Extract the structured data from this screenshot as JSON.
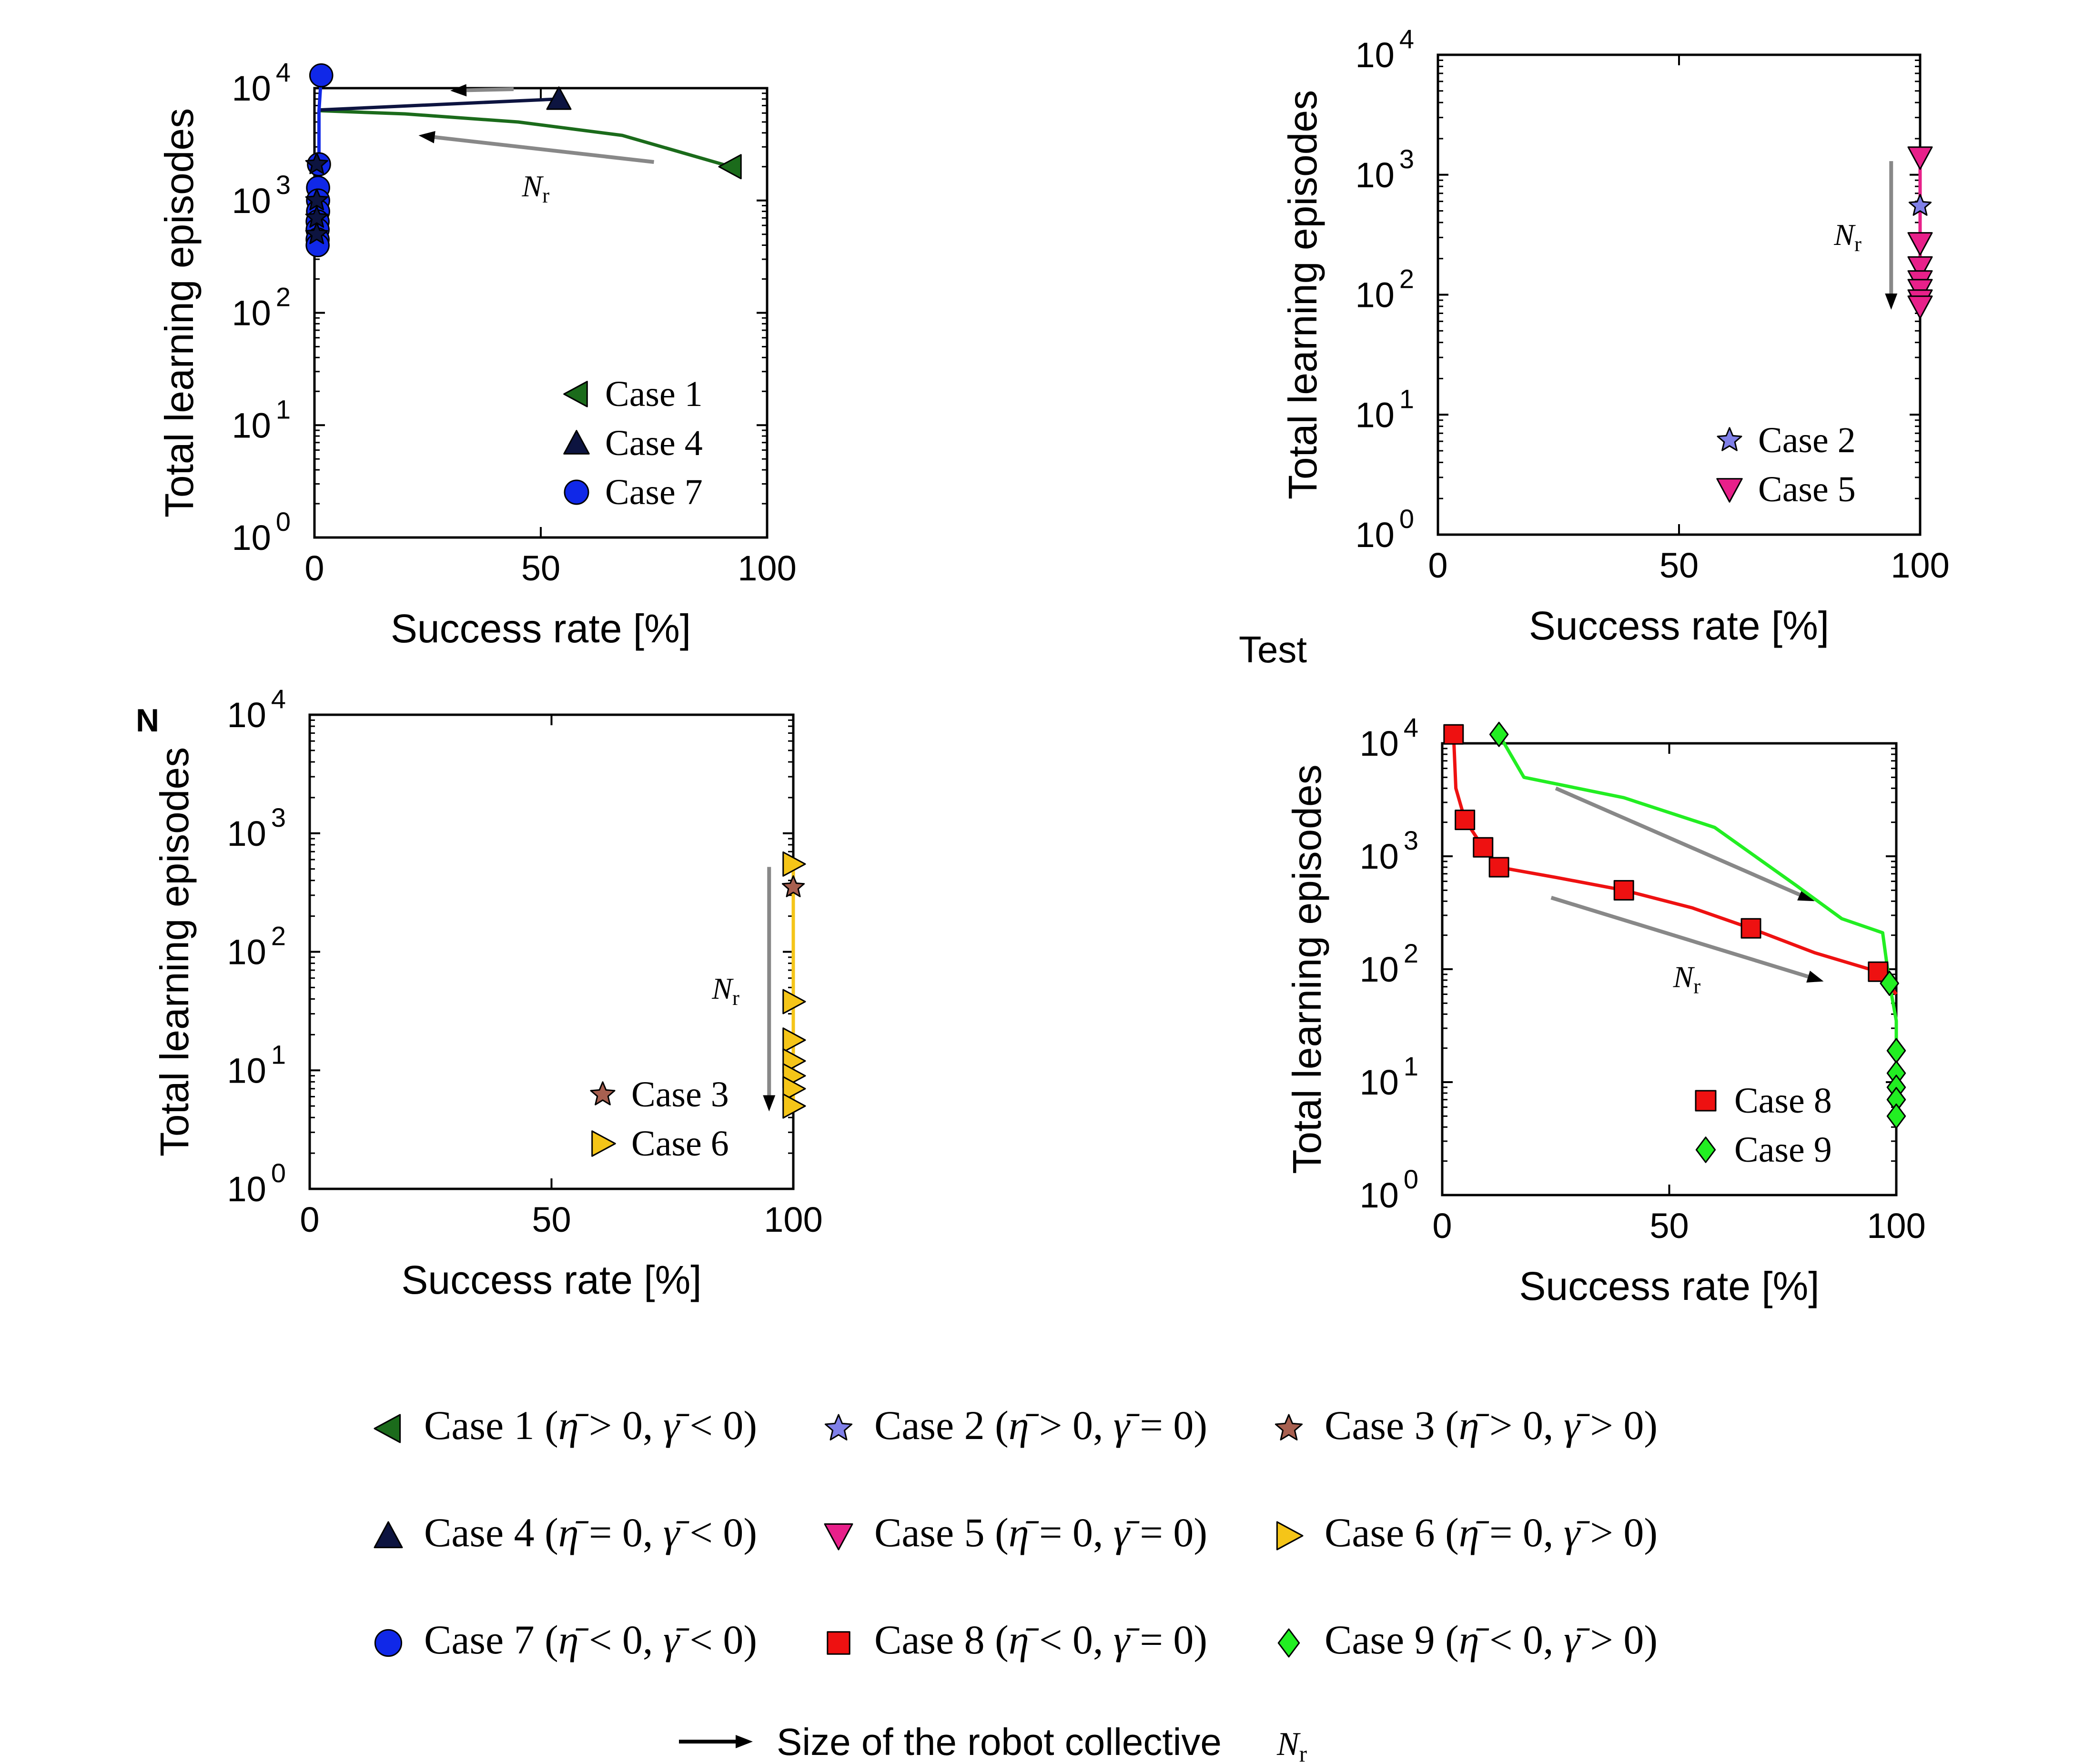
{
  "figure": {
    "stray_labels": [
      {
        "text": "Test"
      },
      {
        "text": "N"
      }
    ]
  },
  "chart_data": [
    {
      "type": "scatter",
      "panel": "top-left",
      "xlabel": "Success rate [%]",
      "ylabel": "Total learning episodes",
      "xlim": [
        0,
        100
      ],
      "ylim": [
        1,
        10000
      ],
      "yscale": "log",
      "xticks": [
        "0",
        "50",
        "100"
      ],
      "yticks": [
        {
          "base": "10",
          "exp": "0"
        },
        {
          "base": "10",
          "exp": "1"
        },
        {
          "base": "10",
          "exp": "2"
        },
        {
          "base": "10",
          "exp": "3"
        },
        {
          "base": "10",
          "exp": "4"
        }
      ],
      "legend": {
        "placement": "bottom-right",
        "entries": [
          "Case 1",
          "Case 4",
          "Case 7"
        ]
      },
      "series": [
        {
          "name": "Case 1",
          "marker": "triangle-left",
          "color": "#1b6b1b",
          "points": [
            [
              92,
              2000
            ]
          ],
          "line": [
            [
              92,
              2000
            ],
            [
              68,
              3800
            ],
            [
              45,
              5000
            ],
            [
              20,
              5900
            ],
            [
              1,
              6300
            ]
          ]
        },
        {
          "name": "Case 4",
          "marker": "triangle-up",
          "color": "#0d1440",
          "points": [
            [
              54,
              8000
            ]
          ],
          "line": [
            [
              54,
              8000
            ],
            [
              1,
              6400
            ]
          ]
        },
        {
          "name": "Case 7",
          "marker": "circle",
          "color": "#1028e8",
          "points": [
            [
              1.5,
              13000
            ],
            [
              1,
              2100
            ],
            [
              0.8,
              1300
            ],
            [
              0.8,
              1000
            ],
            [
              0.8,
              800
            ],
            [
              0.7,
              650
            ],
            [
              0.7,
              550
            ],
            [
              0.7,
              450
            ],
            [
              0.7,
              400
            ]
          ],
          "line": [
            [
              1.5,
              13000
            ],
            [
              1,
              6300
            ],
            [
              1,
              2100
            ],
            [
              0.8,
              1000
            ],
            [
              0.7,
              400
            ]
          ]
        },
        {
          "name": "",
          "marker": "star",
          "color": "#0d1440",
          "points": [
            [
              0.5,
              2100
            ],
            [
              0.5,
              1000
            ],
            [
              0.5,
              700
            ],
            [
              0.5,
              500
            ]
          ]
        }
      ],
      "annotations": [
        {
          "type": "arrow",
          "color": "#888888",
          "label": "",
          "from": [
            44,
            9800
          ],
          "to": [
            30,
            9500
          ]
        },
        {
          "type": "arrow",
          "color": "#888888",
          "label": "N_r",
          "from": [
            75,
            2200
          ],
          "to": [
            23,
            3800
          ]
        }
      ]
    },
    {
      "type": "scatter",
      "panel": "top-right",
      "xlabel": "Success rate [%]",
      "ylabel": "Total learning episodes",
      "xlim": [
        0,
        100
      ],
      "ylim": [
        1,
        10000
      ],
      "yscale": "log",
      "xticks": [
        "0",
        "50",
        "100"
      ],
      "yticks": [
        {
          "base": "10",
          "exp": "0"
        },
        {
          "base": "10",
          "exp": "1"
        },
        {
          "base": "10",
          "exp": "2"
        },
        {
          "base": "10",
          "exp": "3"
        },
        {
          "base": "10",
          "exp": "4"
        }
      ],
      "legend": {
        "placement": "bottom-right",
        "entries": [
          "Case 2",
          "Case 5"
        ]
      },
      "series": [
        {
          "name": "Case 2",
          "marker": "star",
          "color": "#8080e8",
          "points": [
            [
              100,
              550
            ]
          ]
        },
        {
          "name": "Case 5",
          "marker": "triangle-down",
          "color": "#e8208a",
          "points": [
            [
              100,
              1400
            ],
            [
              100,
              270
            ],
            [
              100,
              170
            ],
            [
              100,
              130
            ],
            [
              100,
              110
            ],
            [
              100,
              90
            ],
            [
              100,
              80
            ]
          ],
          "line": [
            [
              100,
              1400
            ],
            [
              100,
              80
            ]
          ]
        }
      ],
      "annotations": [
        {
          "type": "arrow",
          "color": "#888888",
          "label": "N_r",
          "from": [
            94,
            1300
          ],
          "to": [
            94,
            75
          ]
        }
      ]
    },
    {
      "type": "scatter",
      "panel": "bottom-left",
      "xlabel": "Success rate [%]",
      "ylabel": "Total learning episodes",
      "xlim": [
        0,
        100
      ],
      "ylim": [
        1,
        10000
      ],
      "yscale": "log",
      "xticks": [
        "0",
        "50",
        "100"
      ],
      "yticks": [
        {
          "base": "10",
          "exp": "0"
        },
        {
          "base": "10",
          "exp": "1"
        },
        {
          "base": "10",
          "exp": "2"
        },
        {
          "base": "10",
          "exp": "3"
        },
        {
          "base": "10",
          "exp": "4"
        }
      ],
      "legend": {
        "placement": "bottom-right",
        "entries": [
          "Case 3",
          "Case 6"
        ]
      },
      "series": [
        {
          "name": "Case 3",
          "marker": "star",
          "color": "#a86050",
          "points": [
            [
              100,
              350
            ]
          ]
        },
        {
          "name": "Case 6",
          "marker": "triangle-right",
          "color": "#f5c518",
          "points": [
            [
              100,
              550
            ],
            [
              100,
              38
            ],
            [
              100,
              18
            ],
            [
              100,
              12
            ],
            [
              100,
              9
            ],
            [
              100,
              7
            ],
            [
              100,
              5
            ]
          ],
          "line": [
            [
              100,
              550
            ],
            [
              100,
              5
            ]
          ]
        }
      ],
      "annotations": [
        {
          "type": "arrow",
          "color": "#888888",
          "label": "N_r",
          "from": [
            95,
            520
          ],
          "to": [
            95,
            4.5
          ]
        }
      ]
    },
    {
      "type": "scatter",
      "panel": "bottom-right",
      "xlabel": "Success rate [%]",
      "ylabel": "Total learning episodes",
      "xlim": [
        0,
        100
      ],
      "ylim": [
        1,
        10000
      ],
      "yscale": "log",
      "xticks": [
        "0",
        "50",
        "100"
      ],
      "yticks": [
        {
          "base": "10",
          "exp": "0"
        },
        {
          "base": "10",
          "exp": "1"
        },
        {
          "base": "10",
          "exp": "2"
        },
        {
          "base": "10",
          "exp": "3"
        },
        {
          "base": "10",
          "exp": "4"
        }
      ],
      "legend": {
        "placement": "bottom-right",
        "entries": [
          "Case 8",
          "Case 9"
        ]
      },
      "series": [
        {
          "name": "Case 8",
          "marker": "square",
          "color": "#ee1111",
          "points": [
            [
              2.5,
              12000
            ],
            [
              5,
              2100
            ],
            [
              9,
              1200
            ],
            [
              12.5,
              800
            ],
            [
              40,
              500
            ],
            [
              68,
              230
            ],
            [
              96,
              95
            ]
          ],
          "line": [
            [
              2.5,
              12000
            ],
            [
              3,
              4000
            ],
            [
              5,
              2100
            ],
            [
              9,
              1200
            ],
            [
              12.5,
              800
            ],
            [
              25,
              650
            ],
            [
              40,
              500
            ],
            [
              55,
              350
            ],
            [
              68,
              230
            ],
            [
              82,
              140
            ],
            [
              96,
              95
            ],
            [
              100,
              60
            ]
          ]
        },
        {
          "name": "Case 9",
          "marker": "diamond",
          "color": "#22ee22",
          "points": [
            [
              12.5,
              12000
            ],
            [
              98.5,
              75
            ],
            [
              100,
              19
            ],
            [
              100,
              12
            ],
            [
              100,
              9
            ],
            [
              100,
              7
            ],
            [
              100,
              5
            ]
          ],
          "line": [
            [
              12.5,
              12000
            ],
            [
              18,
              5000
            ],
            [
              40,
              3300
            ],
            [
              60,
              1800
            ],
            [
              78,
              550
            ],
            [
              88,
              280
            ],
            [
              97,
              210
            ],
            [
              98.5,
              75
            ],
            [
              100,
              35
            ],
            [
              100,
              5
            ]
          ]
        }
      ],
      "annotations": [
        {
          "type": "arrow",
          "color": "#888888",
          "label": "",
          "from": [
            25,
            4000
          ],
          "to": [
            82,
            400
          ]
        },
        {
          "type": "arrow",
          "color": "#888888",
          "label": "N_r",
          "from": [
            24,
            430
          ],
          "to": [
            84,
            78
          ]
        }
      ]
    }
  ],
  "bottom_legend": {
    "entries": [
      {
        "marker": "triangle-left",
        "color": "#1b6b1b",
        "label": "Case 1",
        "eta": ">",
        "gamma": "<"
      },
      {
        "marker": "star",
        "color": "#8080e8",
        "label": "Case 2",
        "eta": ">",
        "gamma": "="
      },
      {
        "marker": "star",
        "color": "#a86050",
        "label": "Case 3",
        "eta": ">",
        "gamma": ">"
      },
      {
        "marker": "triangle-up",
        "color": "#0d1440",
        "label": "Case 4",
        "eta": "=",
        "gamma": "<"
      },
      {
        "marker": "triangle-down",
        "color": "#e8208a",
        "label": "Case 5",
        "eta": "=",
        "gamma": "="
      },
      {
        "marker": "triangle-right",
        "color": "#f5c518",
        "label": "Case 6",
        "eta": "=",
        "gamma": ">"
      },
      {
        "marker": "circle",
        "color": "#1028e8",
        "label": "Case 7",
        "eta": "<",
        "gamma": "<"
      },
      {
        "marker": "square",
        "color": "#ee1111",
        "label": "Case 8",
        "eta": "<",
        "gamma": "="
      },
      {
        "marker": "diamond",
        "color": "#22ee22",
        "label": "Case 9",
        "eta": "<",
        "gamma": ">"
      }
    ],
    "arrow_label": "Size of the robot collective",
    "arrow_symbol": "N_r"
  }
}
